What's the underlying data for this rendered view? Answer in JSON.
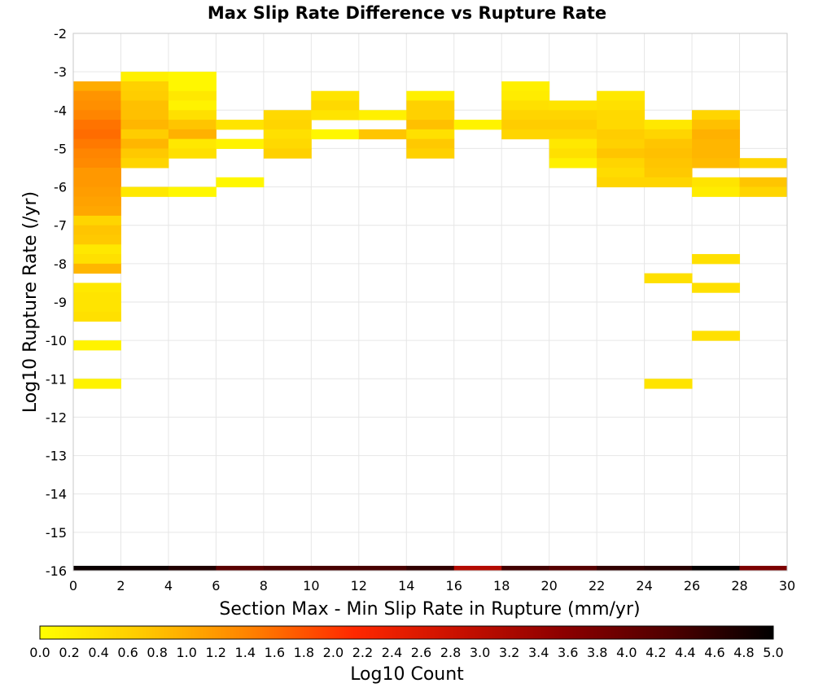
{
  "chart_data": {
    "type": "heatmap",
    "title": "Max Slip Rate Difference vs Rupture Rate",
    "xlabel": "Section Max - Min Slip Rate in Rupture (mm/yr)",
    "ylabel": "Log10 Rupture Rate (/yr)",
    "xlim": [
      0,
      30
    ],
    "ylim": [
      -16,
      -2
    ],
    "x_ticks": [
      "0",
      "2",
      "4",
      "6",
      "8",
      "10",
      "12",
      "14",
      "16",
      "18",
      "20",
      "22",
      "24",
      "26",
      "28",
      "30"
    ],
    "y_ticks": [
      "-2",
      "-3",
      "-4",
      "-5",
      "-6",
      "-7",
      "-8",
      "-9",
      "-10",
      "-11",
      "-12",
      "-13",
      "-14",
      "-15",
      "-16"
    ],
    "x_bin_width": 2,
    "y_bin_height": 0.25,
    "grid": true,
    "colorbar": {
      "label": "Log10 Count",
      "range": [
        0,
        5
      ],
      "tick_labels": [
        "0.0",
        "0.2",
        "0.4",
        "0.6",
        "0.8",
        "1.0",
        "1.2",
        "1.4",
        "1.6",
        "1.8",
        "2.0",
        "2.2",
        "2.4",
        "2.6",
        "2.8",
        "3.0",
        "3.2",
        "3.4",
        "3.6",
        "3.8",
        "4.0",
        "4.2",
        "4.4",
        "4.6",
        "4.8",
        "5.0"
      ],
      "colors": [
        "#ffff00",
        "#ffc800",
        "#ff8200",
        "#ff2800",
        "#c81000",
        "#8c0000",
        "#500000",
        "#000000"
      ]
    },
    "cells": [
      {
        "x": 1,
        "y": -3.375,
        "v": 1.0
      },
      {
        "x": 1,
        "y": -3.625,
        "v": 1.25
      },
      {
        "x": 1,
        "y": -3.875,
        "v": 1.3
      },
      {
        "x": 1,
        "y": -4.125,
        "v": 1.4
      },
      {
        "x": 1,
        "y": -4.375,
        "v": 1.55
      },
      {
        "x": 1,
        "y": -4.625,
        "v": 1.6
      },
      {
        "x": 1,
        "y": -4.875,
        "v": 1.5
      },
      {
        "x": 1,
        "y": -5.125,
        "v": 1.4
      },
      {
        "x": 1,
        "y": -5.375,
        "v": 1.35
      },
      {
        "x": 1,
        "y": -5.625,
        "v": 1.2
      },
      {
        "x": 1,
        "y": -5.875,
        "v": 1.2
      },
      {
        "x": 1,
        "y": -6.125,
        "v": 1.15
      },
      {
        "x": 1,
        "y": -6.375,
        "v": 1.1
      },
      {
        "x": 1,
        "y": -6.625,
        "v": 1.05
      },
      {
        "x": 1,
        "y": -6.875,
        "v": 0.55
      },
      {
        "x": 1,
        "y": -7.125,
        "v": 0.75
      },
      {
        "x": 1,
        "y": -7.375,
        "v": 0.7
      },
      {
        "x": 1,
        "y": -7.625,
        "v": 0.3
      },
      {
        "x": 1,
        "y": -7.875,
        "v": 0.4
      },
      {
        "x": 1,
        "y": -8.125,
        "v": 0.9
      },
      {
        "x": 1,
        "y": -8.625,
        "v": 0.3
      },
      {
        "x": 1,
        "y": -8.875,
        "v": 0.35
      },
      {
        "x": 1,
        "y": -9.125,
        "v": 0.35
      },
      {
        "x": 1,
        "y": -9.375,
        "v": 0.4
      },
      {
        "x": 1,
        "y": -10.125,
        "v": 0.15
      },
      {
        "x": 1,
        "y": -11.125,
        "v": 0.15
      },
      {
        "x": 3,
        "y": -3.125,
        "v": 0.2
      },
      {
        "x": 3,
        "y": -3.375,
        "v": 0.6
      },
      {
        "x": 3,
        "y": -3.625,
        "v": 0.65
      },
      {
        "x": 3,
        "y": -3.875,
        "v": 0.8
      },
      {
        "x": 3,
        "y": -4.125,
        "v": 0.8
      },
      {
        "x": 3,
        "y": -4.375,
        "v": 0.9
      },
      {
        "x": 3,
        "y": -4.625,
        "v": 0.65
      },
      {
        "x": 3,
        "y": -4.875,
        "v": 0.9
      },
      {
        "x": 3,
        "y": -5.125,
        "v": 0.7
      },
      {
        "x": 3,
        "y": -5.375,
        "v": 0.55
      },
      {
        "x": 3,
        "y": -6.125,
        "v": 0.3
      },
      {
        "x": 5,
        "y": -3.125,
        "v": 0.1
      },
      {
        "x": 5,
        "y": -3.375,
        "v": 0.1
      },
      {
        "x": 5,
        "y": -3.625,
        "v": 0.3
      },
      {
        "x": 5,
        "y": -3.875,
        "v": 0.15
      },
      {
        "x": 5,
        "y": -4.125,
        "v": 0.4
      },
      {
        "x": 5,
        "y": -4.375,
        "v": 0.75
      },
      {
        "x": 5,
        "y": -4.625,
        "v": 0.95
      },
      {
        "x": 5,
        "y": -4.875,
        "v": 0.3
      },
      {
        "x": 5,
        "y": -5.125,
        "v": 0.4
      },
      {
        "x": 5,
        "y": -6.125,
        "v": 0.1
      },
      {
        "x": 7,
        "y": -4.375,
        "v": 0.35
      },
      {
        "x": 7,
        "y": -4.875,
        "v": 0.15
      },
      {
        "x": 7,
        "y": -5.875,
        "v": 0.1
      },
      {
        "x": 9,
        "y": -4.125,
        "v": 0.5
      },
      {
        "x": 9,
        "y": -4.375,
        "v": 0.55
      },
      {
        "x": 9,
        "y": -4.625,
        "v": 0.4
      },
      {
        "x": 9,
        "y": -4.875,
        "v": 0.5
      },
      {
        "x": 9,
        "y": -5.125,
        "v": 0.6
      },
      {
        "x": 11,
        "y": -3.625,
        "v": 0.35
      },
      {
        "x": 11,
        "y": -3.875,
        "v": 0.5
      },
      {
        "x": 11,
        "y": -4.125,
        "v": 0.35
      },
      {
        "x": 11,
        "y": -4.625,
        "v": 0.1
      },
      {
        "x": 13,
        "y": -4.125,
        "v": 0.2
      },
      {
        "x": 13,
        "y": -4.625,
        "v": 0.75
      },
      {
        "x": 15,
        "y": -3.625,
        "v": 0.2
      },
      {
        "x": 15,
        "y": -3.875,
        "v": 0.6
      },
      {
        "x": 15,
        "y": -4.125,
        "v": 0.6
      },
      {
        "x": 15,
        "y": -4.375,
        "v": 0.8
      },
      {
        "x": 15,
        "y": -4.625,
        "v": 0.4
      },
      {
        "x": 15,
        "y": -4.875,
        "v": 0.7
      },
      {
        "x": 15,
        "y": -5.125,
        "v": 0.6
      },
      {
        "x": 17,
        "y": -4.375,
        "v": 0.15
      },
      {
        "x": 19,
        "y": -3.375,
        "v": 0.2
      },
      {
        "x": 19,
        "y": -3.625,
        "v": 0.25
      },
      {
        "x": 19,
        "y": -3.875,
        "v": 0.4
      },
      {
        "x": 19,
        "y": -4.125,
        "v": 0.55
      },
      {
        "x": 19,
        "y": -4.375,
        "v": 0.65
      },
      {
        "x": 19,
        "y": -4.625,
        "v": 0.55
      },
      {
        "x": 21,
        "y": -3.875,
        "v": 0.35
      },
      {
        "x": 21,
        "y": -4.125,
        "v": 0.55
      },
      {
        "x": 21,
        "y": -4.375,
        "v": 0.65
      },
      {
        "x": 21,
        "y": -4.625,
        "v": 0.55
      },
      {
        "x": 21,
        "y": -4.875,
        "v": 0.3
      },
      {
        "x": 21,
        "y": -5.125,
        "v": 0.4
      },
      {
        "x": 21,
        "y": -5.375,
        "v": 0.2
      },
      {
        "x": 23,
        "y": -3.625,
        "v": 0.3
      },
      {
        "x": 23,
        "y": -3.875,
        "v": 0.4
      },
      {
        "x": 23,
        "y": -4.125,
        "v": 0.5
      },
      {
        "x": 23,
        "y": -4.375,
        "v": 0.5
      },
      {
        "x": 23,
        "y": -4.625,
        "v": 0.65
      },
      {
        "x": 23,
        "y": -4.875,
        "v": 0.6
      },
      {
        "x": 23,
        "y": -5.125,
        "v": 0.75
      },
      {
        "x": 23,
        "y": -5.375,
        "v": 0.55
      },
      {
        "x": 23,
        "y": -5.625,
        "v": 0.45
      },
      {
        "x": 23,
        "y": -5.875,
        "v": 0.55
      },
      {
        "x": 25,
        "y": -4.375,
        "v": 0.3
      },
      {
        "x": 25,
        "y": -4.625,
        "v": 0.55
      },
      {
        "x": 25,
        "y": -4.875,
        "v": 0.75
      },
      {
        "x": 25,
        "y": -5.125,
        "v": 0.8
      },
      {
        "x": 25,
        "y": -5.375,
        "v": 0.75
      },
      {
        "x": 25,
        "y": -5.625,
        "v": 0.7
      },
      {
        "x": 25,
        "y": -5.875,
        "v": 0.55
      },
      {
        "x": 25,
        "y": -8.375,
        "v": 0.4
      },
      {
        "x": 25,
        "y": -11.125,
        "v": 0.35
      },
      {
        "x": 27,
        "y": -4.125,
        "v": 0.55
      },
      {
        "x": 27,
        "y": -4.375,
        "v": 0.8
      },
      {
        "x": 27,
        "y": -4.625,
        "v": 0.95
      },
      {
        "x": 27,
        "y": -4.875,
        "v": 0.9
      },
      {
        "x": 27,
        "y": -5.125,
        "v": 0.9
      },
      {
        "x": 27,
        "y": -5.375,
        "v": 0.85
      },
      {
        "x": 27,
        "y": -5.875,
        "v": 0.35
      },
      {
        "x": 27,
        "y": -6.125,
        "v": 0.25
      },
      {
        "x": 27,
        "y": -7.875,
        "v": 0.4
      },
      {
        "x": 27,
        "y": -8.625,
        "v": 0.4
      },
      {
        "x": 27,
        "y": -9.875,
        "v": 0.4
      },
      {
        "x": 29,
        "y": -5.375,
        "v": 0.55
      },
      {
        "x": 29,
        "y": -5.875,
        "v": 0.75
      },
      {
        "x": 29,
        "y": -6.125,
        "v": 0.55
      }
    ],
    "bottom_row_cells": [
      {
        "x": 1,
        "v": 4.9
      },
      {
        "x": 3,
        "v": 4.85
      },
      {
        "x": 5,
        "v": 4.7
      },
      {
        "x": 7,
        "v": 4.15
      },
      {
        "x": 9,
        "v": 4.3
      },
      {
        "x": 11,
        "v": 4.35
      },
      {
        "x": 13,
        "v": 4.35
      },
      {
        "x": 15,
        "v": 4.55
      },
      {
        "x": 17,
        "v": 3.1
      },
      {
        "x": 19,
        "v": 4.4
      },
      {
        "x": 21,
        "v": 4.2
      },
      {
        "x": 23,
        "v": 4.55
      },
      {
        "x": 25,
        "v": 4.65
      },
      {
        "x": 27,
        "v": 4.95
      },
      {
        "x": 29,
        "v": 3.75
      }
    ]
  }
}
